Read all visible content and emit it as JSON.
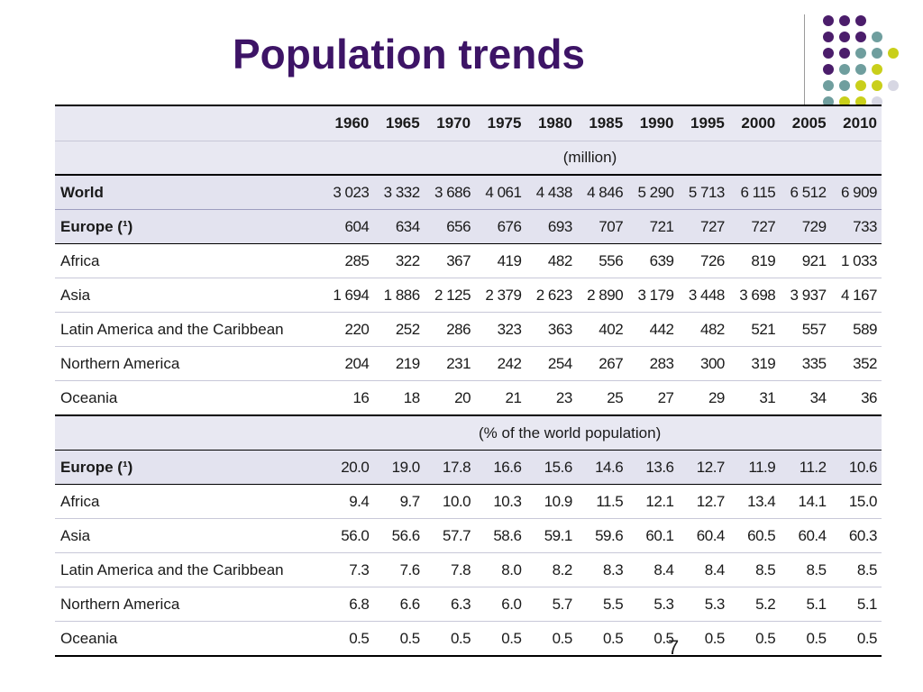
{
  "slide": {
    "title": "Population trends",
    "page_number": "7"
  },
  "table": {
    "years": [
      "1960",
      "1965",
      "1970",
      "1975",
      "1980",
      "1985",
      "1990",
      "1995",
      "2000",
      "2005",
      "2010"
    ],
    "unit_million": "(million)",
    "unit_percent": "(% of the world population)",
    "million_rows": [
      {
        "label": "World",
        "values": [
          "3 023",
          "3 332",
          "3 686",
          "4 061",
          "4 438",
          "4 846",
          "5 290",
          "5 713",
          "6 115",
          "6 512",
          "6 909"
        ]
      },
      {
        "label": "Europe (¹)",
        "values": [
          "604",
          "634",
          "656",
          "676",
          "693",
          "707",
          "721",
          "727",
          "727",
          "729",
          "733"
        ]
      },
      {
        "label": "Africa",
        "values": [
          "285",
          "322",
          "367",
          "419",
          "482",
          "556",
          "639",
          "726",
          "819",
          "921",
          "1 033"
        ]
      },
      {
        "label": "Asia",
        "values": [
          "1 694",
          "1 886",
          "2 125",
          "2 379",
          "2 623",
          "2 890",
          "3 179",
          "3 448",
          "3 698",
          "3 937",
          "4 167"
        ]
      },
      {
        "label": "Latin America and the Caribbean",
        "values": [
          "220",
          "252",
          "286",
          "323",
          "363",
          "402",
          "442",
          "482",
          "521",
          "557",
          "589"
        ]
      },
      {
        "label": "Northern America",
        "values": [
          "204",
          "219",
          "231",
          "242",
          "254",
          "267",
          "283",
          "300",
          "319",
          "335",
          "352"
        ]
      },
      {
        "label": "Oceania",
        "values": [
          "16",
          "18",
          "20",
          "21",
          "23",
          "25",
          "27",
          "29",
          "31",
          "34",
          "36"
        ]
      }
    ],
    "percent_rows": [
      {
        "label": "Europe (¹)",
        "values": [
          "20.0",
          "19.0",
          "17.8",
          "16.6",
          "15.6",
          "14.6",
          "13.6",
          "12.7",
          "11.9",
          "11.2",
          "10.6"
        ]
      },
      {
        "label": "Africa",
        "values": [
          "9.4",
          "9.7",
          "10.0",
          "10.3",
          "10.9",
          "11.5",
          "12.1",
          "12.7",
          "13.4",
          "14.1",
          "15.0"
        ]
      },
      {
        "label": "Asia",
        "values": [
          "56.0",
          "56.6",
          "57.7",
          "58.6",
          "59.1",
          "59.6",
          "60.1",
          "60.4",
          "60.5",
          "60.4",
          "60.3"
        ]
      },
      {
        "label": "Latin America and the Caribbean",
        "values": [
          "7.3",
          "7.6",
          "7.8",
          "8.0",
          "8.2",
          "8.3",
          "8.4",
          "8.4",
          "8.5",
          "8.5",
          "8.5"
        ]
      },
      {
        "label": "Northern America",
        "values": [
          "6.8",
          "6.6",
          "6.3",
          "6.0",
          "5.7",
          "5.5",
          "5.3",
          "5.3",
          "5.2",
          "5.1",
          "5.1"
        ]
      },
      {
        "label": "Oceania",
        "values": [
          "0.5",
          "0.5",
          "0.5",
          "0.5",
          "0.5",
          "0.5",
          "0.5",
          "0.5",
          "0.5",
          "0.5",
          "0.5"
        ]
      }
    ]
  },
  "theme": {
    "title_color": "#3d1466",
    "dot_colors": [
      "#4b1d6b",
      "#6f9e9e",
      "#c9cf1a",
      "#d7d7e3"
    ]
  }
}
